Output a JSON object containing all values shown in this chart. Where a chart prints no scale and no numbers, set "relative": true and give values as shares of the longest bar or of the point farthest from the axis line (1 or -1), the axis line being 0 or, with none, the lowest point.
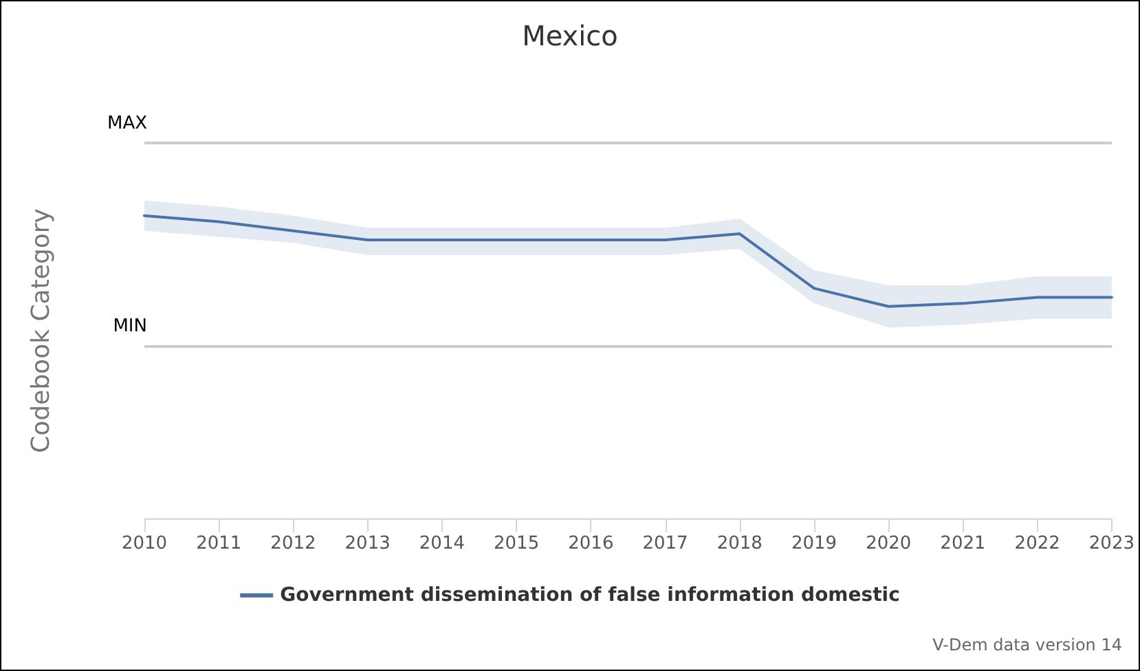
{
  "chart_data": {
    "type": "line",
    "title": "Mexico",
    "ylabel": "Codebook Category",
    "relative": true,
    "categories": [
      "2010",
      "2011",
      "2012",
      "2013",
      "2014",
      "2015",
      "2016",
      "2017",
      "2018",
      "2019",
      "2020",
      "2021",
      "2022",
      "2023"
    ],
    "series": [
      {
        "name": "Government dissemination of false information domestic",
        "color": "#4a73aa",
        "values": [
          1,
          0.98,
          0.95,
          0.92,
          0.92,
          0.92,
          0.92,
          0.92,
          0.94,
          0.76,
          0.7,
          0.71,
          0.73,
          0.73
        ],
        "lower": [
          0.95,
          0.93,
          0.91,
          0.87,
          0.87,
          0.87,
          0.87,
          0.87,
          0.89,
          0.71,
          0.63,
          0.64,
          0.66,
          0.66
        ],
        "upper": [
          1.05,
          1.03,
          1,
          0.96,
          0.96,
          0.96,
          0.96,
          0.96,
          0.99,
          0.82,
          0.77,
          0.77,
          0.8,
          0.8
        ]
      }
    ],
    "ref_lines": [
      {
        "axis": "y",
        "value": 1.24,
        "label": "MAX",
        "color": "#cccccc"
      },
      {
        "axis": "y",
        "value": 0.57,
        "label": "MIN",
        "color": "#cccccc"
      }
    ],
    "legend": "bottom",
    "marker": "none",
    "line_style": "solid",
    "annotations": [
      "V-Dem data version 14"
    ]
  }
}
